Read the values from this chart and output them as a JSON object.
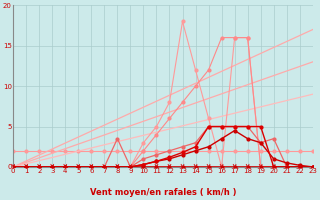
{
  "xlabel": "Vent moyen/en rafales ( km/h )",
  "bg_color": "#cceaea",
  "grid_color": "#aacccc",
  "x_ticks": [
    0,
    1,
    2,
    3,
    4,
    5,
    6,
    7,
    8,
    9,
    10,
    11,
    12,
    13,
    14,
    15,
    16,
    17,
    18,
    19,
    20,
    21,
    22,
    23
  ],
  "ylim": [
    0,
    20
  ],
  "xlim": [
    0,
    23
  ],
  "yticks": [
    0,
    5,
    10,
    15,
    20
  ],
  "arrows_x": [
    0,
    1,
    2,
    3,
    4,
    5,
    6,
    7,
    8,
    9,
    10,
    11,
    12,
    13,
    14,
    15,
    16,
    17,
    18,
    19,
    20,
    21,
    22
  ],
  "arrow_color": "#cc2222",
  "lines": [
    {
      "x": [
        0,
        1,
        2,
        3,
        4,
        5,
        6,
        7,
        8,
        9,
        10,
        11,
        12,
        13,
        14,
        15,
        16,
        17,
        18,
        19,
        20,
        21,
        22,
        23
      ],
      "y": [
        2,
        2,
        2,
        2,
        2,
        2,
        2,
        2,
        2,
        2,
        2,
        2,
        2,
        2,
        2,
        2,
        2,
        2,
        2,
        2,
        2,
        2,
        2,
        2
      ],
      "color": "#ff9999",
      "marker": "o",
      "ms": 2.0,
      "lw": 0.8,
      "zorder": 2
    },
    {
      "x": [
        0,
        23
      ],
      "y": [
        0,
        17.0
      ],
      "color": "#ffaaaa",
      "marker": "",
      "ms": 0,
      "lw": 0.9,
      "zorder": 2
    },
    {
      "x": [
        0,
        23
      ],
      "y": [
        0,
        13.0
      ],
      "color": "#ffaaaa",
      "marker": "",
      "ms": 0,
      "lw": 0.9,
      "zorder": 2
    },
    {
      "x": [
        0,
        23
      ],
      "y": [
        0,
        9.0
      ],
      "color": "#ffbbbb",
      "marker": "",
      "ms": 0,
      "lw": 0.9,
      "zorder": 2
    },
    {
      "x": [
        0,
        1,
        2,
        3,
        4,
        5,
        6,
        7,
        8,
        9,
        10,
        11,
        12,
        13,
        14,
        15,
        16,
        17,
        18,
        19,
        20,
        21,
        22,
        23
      ],
      "y": [
        0,
        0,
        0,
        0,
        0,
        0,
        0,
        0,
        0,
        0,
        3,
        5,
        8,
        18,
        12,
        6,
        0,
        16,
        16,
        0,
        0,
        0,
        0,
        0
      ],
      "color": "#ff9999",
      "marker": "o",
      "ms": 2.0,
      "lw": 0.8,
      "zorder": 3
    },
    {
      "x": [
        0,
        1,
        2,
        3,
        4,
        5,
        6,
        7,
        8,
        9,
        10,
        11,
        12,
        13,
        14,
        15,
        16,
        17,
        18,
        19,
        20,
        21,
        22,
        23
      ],
      "y": [
        0,
        0,
        0,
        0,
        0,
        0,
        0,
        0,
        0,
        0,
        2,
        4,
        6,
        8,
        10,
        12,
        16,
        16,
        16,
        0,
        0,
        0,
        0,
        0
      ],
      "color": "#ff8888",
      "marker": "o",
      "ms": 2.0,
      "lw": 0.8,
      "zorder": 3
    },
    {
      "x": [
        0,
        1,
        2,
        3,
        4,
        5,
        6,
        7,
        8,
        9,
        10,
        11,
        12,
        13,
        14,
        15,
        16,
        17,
        18,
        19,
        20,
        21,
        22,
        23
      ],
      "y": [
        0,
        0,
        0,
        0,
        0,
        0,
        0,
        0,
        3.5,
        0,
        1,
        1.5,
        2,
        2.5,
        3,
        5,
        5,
        5,
        5,
        3,
        3.5,
        0,
        0,
        0
      ],
      "color": "#ee6666",
      "marker": "o",
      "ms": 2.0,
      "lw": 0.9,
      "zorder": 4
    },
    {
      "x": [
        0,
        1,
        2,
        3,
        4,
        5,
        6,
        7,
        8,
        9,
        10,
        11,
        12,
        13,
        14,
        15,
        16,
        17,
        18,
        19,
        20,
        21,
        22,
        23
      ],
      "y": [
        0,
        0,
        0,
        0,
        0,
        0,
        0,
        0,
        0,
        0,
        0.3,
        0.7,
        1.0,
        1.5,
        2.0,
        2.5,
        3.5,
        4.5,
        3.5,
        3.0,
        1.0,
        0.5,
        0.2,
        0
      ],
      "color": "#cc0000",
      "marker": "o",
      "ms": 2.0,
      "lw": 1.0,
      "zorder": 5
    },
    {
      "x": [
        0,
        1,
        2,
        3,
        4,
        5,
        6,
        7,
        8,
        9,
        10,
        11,
        12,
        13,
        14,
        15,
        16,
        17,
        18,
        19,
        20,
        21,
        22,
        23
      ],
      "y": [
        0,
        0,
        0,
        0,
        0,
        0,
        0,
        0,
        0,
        0,
        0.3,
        0.7,
        1.2,
        1.8,
        2.5,
        5,
        5,
        5,
        5,
        5,
        0,
        0,
        0,
        0
      ],
      "color": "#dd0000",
      "marker": "o",
      "ms": 2.0,
      "lw": 1.0,
      "zorder": 5
    },
    {
      "x": [
        0,
        1,
        2,
        3,
        4,
        5,
        6,
        7,
        8,
        9,
        10,
        11,
        12,
        13,
        14,
        15,
        16,
        17,
        18,
        19,
        20,
        21,
        22,
        23
      ],
      "y": [
        0,
        0,
        0,
        0,
        0,
        0,
        0,
        0,
        0,
        0,
        0,
        0,
        0,
        0,
        0,
        0,
        0,
        0,
        0,
        0,
        0,
        0,
        0,
        0
      ],
      "color": "#cc0000",
      "marker": "o",
      "ms": 2.0,
      "lw": 1.2,
      "zorder": 6
    }
  ]
}
